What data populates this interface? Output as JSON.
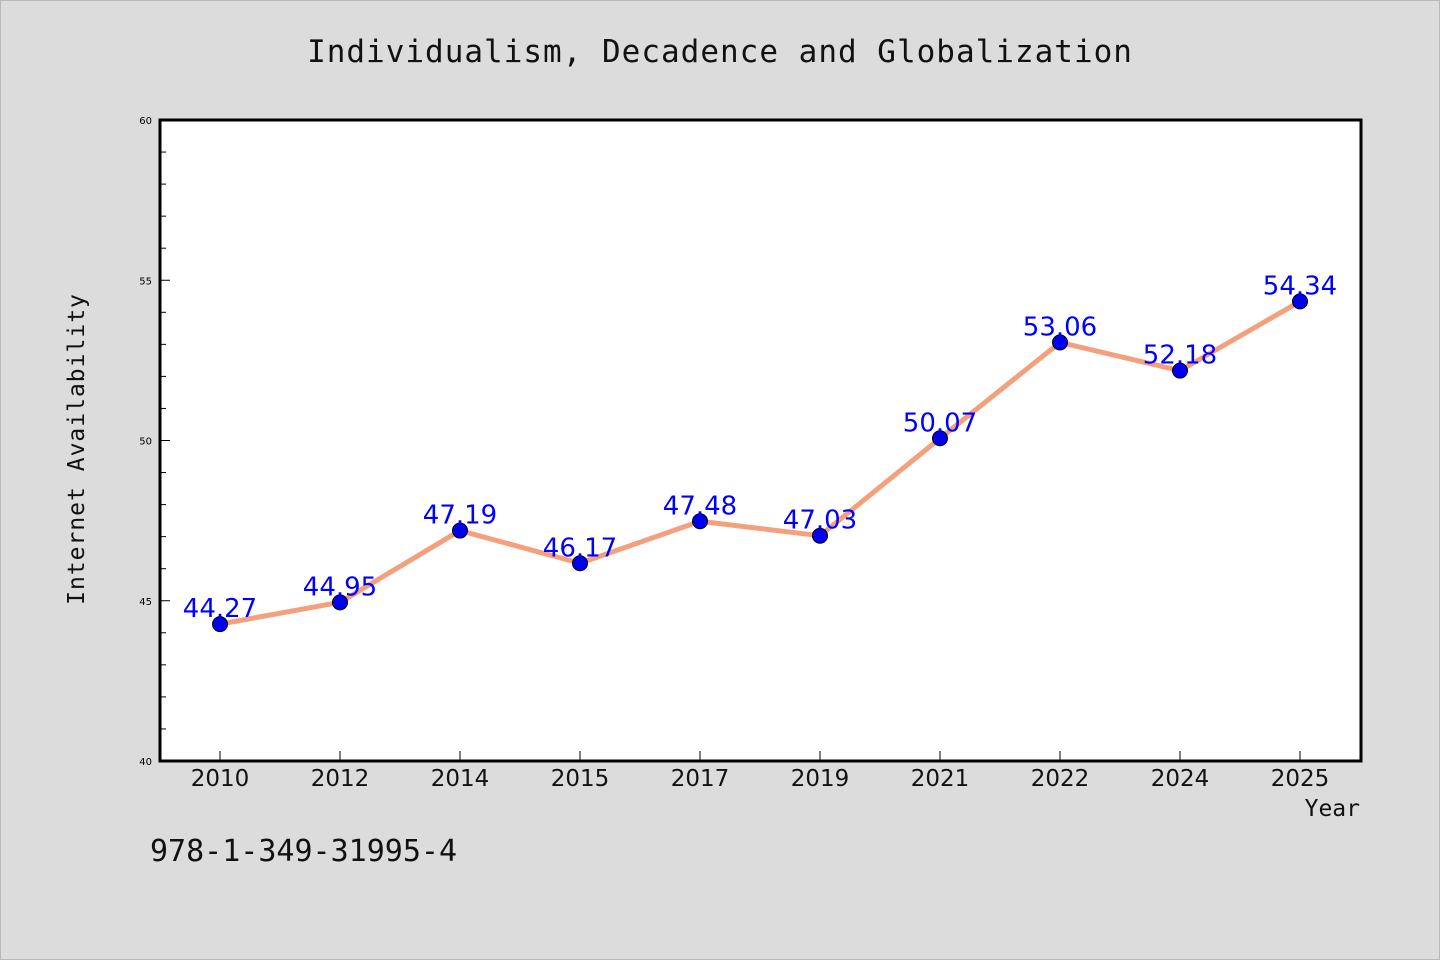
{
  "chart_data": {
    "type": "line",
    "title": "Individualism, Decadence and Globalization",
    "xlabel": "Year",
    "ylabel": "Internet Availability",
    "categories": [
      "2010",
      "2012",
      "2014",
      "2015",
      "2017",
      "2019",
      "2021",
      "2022",
      "2024",
      "2025"
    ],
    "series": [
      {
        "values": [
          44.27,
          44.95,
          47.19,
          46.17,
          47.48,
          47.03,
          50.07,
          53.06,
          52.18,
          54.34
        ],
        "labels": [
          "44.27",
          "44.95",
          "47.19",
          "46.17",
          "47.48",
          "47.03",
          "50.07",
          "53.06",
          "52.18",
          "54.34"
        ]
      }
    ],
    "ylim": [
      40,
      60
    ],
    "yticks": [
      "40",
      "45",
      "50",
      "55",
      "60"
    ],
    "grid": false,
    "line_color": "#f4a07c",
    "marker_color": "#0000ee",
    "label_color": "#0000ff"
  },
  "footer": {
    "isbn": "978-1-349-31995-4"
  }
}
